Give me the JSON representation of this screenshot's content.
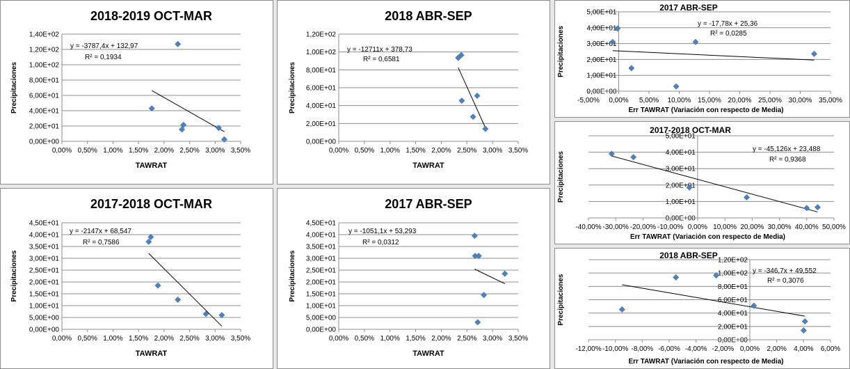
{
  "chart_data": [
    {
      "type": "scatter",
      "title": "2018-2019 OCT-MAR",
      "xlabel": "TAWRAT",
      "ylabel": "Precipitaciones",
      "xlim": [
        0,
        0.035
      ],
      "ylim": [
        0,
        140
      ],
      "x_ticks": [
        "0,00%",
        "0,50%",
        "1,00%",
        "1,50%",
        "2,00%",
        "2,50%",
        "3,00%",
        "3,50%"
      ],
      "y_ticks": [
        "0,00E+00",
        "2,00E+01",
        "4,00E+01",
        "6,00E+01",
        "8,00E+01",
        "1,00E+02",
        "1,20E+02",
        "1,40E+02"
      ],
      "points": [
        {
          "x": 0.0176,
          "y": 43
        },
        {
          "x": 0.0227,
          "y": 127
        },
        {
          "x": 0.0235,
          "y": 15.5
        },
        {
          "x": 0.0238,
          "y": 21.5
        },
        {
          "x": 0.0307,
          "y": 17.5
        },
        {
          "x": 0.0318,
          "y": 2.5
        }
      ],
      "trendline": {
        "slope": -3787.4,
        "intercept": 132.97
      },
      "equation": "y = -3787,4x + 132,97",
      "r2": "R² = 0,1934",
      "grid": true,
      "legend": "none",
      "marker_color": "#4f81bd"
    },
    {
      "type": "scatter",
      "title": "2018 ABR-SEP",
      "xlabel": "TAWRAT",
      "ylabel": "Precipitaciones",
      "xlim": [
        0,
        0.035
      ],
      "ylim": [
        0,
        120
      ],
      "x_ticks": [
        "0,00%",
        "0,50%",
        "1,00%",
        "1,50%",
        "2,00%",
        "2,50%",
        "3,00%",
        "3,50%"
      ],
      "y_ticks": [
        "0,00E+00",
        "2,00E+01",
        "4,00E+01",
        "6,00E+01",
        "8,00E+01",
        "1,00E+02",
        "1,20E+02"
      ],
      "points": [
        {
          "x": 0.0233,
          "y": 93.5
        },
        {
          "x": 0.0239,
          "y": 96.5
        },
        {
          "x": 0.024,
          "y": 45.5
        },
        {
          "x": 0.0262,
          "y": 27.5
        },
        {
          "x": 0.027,
          "y": 51
        },
        {
          "x": 0.0286,
          "y": 14
        }
      ],
      "trendline": {
        "slope": -12711,
        "intercept": 378.73
      },
      "equation": "y = -12711x + 378,73",
      "r2": "R² = 0,6581",
      "grid": true,
      "legend": "none",
      "marker_color": "#4f81bd"
    },
    {
      "type": "scatter",
      "title": "2017-2018 OCT-MAR",
      "xlabel": "TAWRAT",
      "ylabel": "Precipitaciones",
      "xlim": [
        0,
        0.035
      ],
      "ylim": [
        0,
        45
      ],
      "x_ticks": [
        "0,00%",
        "0,50%",
        "1,00%",
        "1,50%",
        "2,00%",
        "2,50%",
        "3,00%",
        "3,50%"
      ],
      "y_ticks": [
        "0,00E+00",
        "5,00E+00",
        "1,00E+01",
        "1,50E+01",
        "2,00E+01",
        "2,50E+01",
        "3,00E+01",
        "3,50E+01",
        "4,00E+01",
        "4,50E+01"
      ],
      "points": [
        {
          "x": 0.017,
          "y": 37
        },
        {
          "x": 0.0174,
          "y": 39
        },
        {
          "x": 0.0188,
          "y": 18.5
        },
        {
          "x": 0.0227,
          "y": 12.5
        },
        {
          "x": 0.0282,
          "y": 6.5
        },
        {
          "x": 0.0313,
          "y": 6
        }
      ],
      "trendline": {
        "slope": -2147,
        "intercept": 68.547
      },
      "equation": "y = -2147x + 68,547",
      "r2": "R² = 0,7586",
      "grid": true,
      "legend": "none",
      "marker_color": "#4f81bd"
    },
    {
      "type": "scatter",
      "title": "2017 ABR-SEP",
      "xlabel": "TAWRAT",
      "ylabel": "Precipitaciones",
      "xlim": [
        0,
        0.035
      ],
      "ylim": [
        0,
        45
      ],
      "x_ticks": [
        "0,00%",
        "0,50%",
        "1,00%",
        "1,50%",
        "2,00%",
        "2,50%",
        "3,00%",
        "3,50%"
      ],
      "y_ticks": [
        "0,00E+00",
        "5,00E+00",
        "1,00E+01",
        "1,50E+01",
        "2,00E+01",
        "2,50E+01",
        "3,00E+01",
        "3,50E+01",
        "4,00E+01",
        "4,50E+01"
      ],
      "points": [
        {
          "x": 0.0265,
          "y": 39.5
        },
        {
          "x": 0.0266,
          "y": 31
        },
        {
          "x": 0.0273,
          "y": 31
        },
        {
          "x": 0.0271,
          "y": 3
        },
        {
          "x": 0.0283,
          "y": 14.5
        },
        {
          "x": 0.0324,
          "y": 23.5
        }
      ],
      "trendline": {
        "slope": -1051.1,
        "intercept": 53.293
      },
      "equation": "y = -1051,1x + 53,293",
      "r2": "R² = 0,0312",
      "grid": true,
      "legend": "none",
      "marker_color": "#4f81bd"
    },
    {
      "type": "scatter",
      "title": "2017 ABR-SEP",
      "xlabel": "Err TAWRAT (Variación con respecto de Media)",
      "ylabel": "Precipitaciones",
      "xlim": [
        -0.05,
        0.35
      ],
      "ylim": [
        0,
        50
      ],
      "x_ticks": [
        "-5,00%",
        "0,00%",
        "5,00%",
        "10,00%",
        "15,00%",
        "20,00%",
        "25,00%",
        "30,00%",
        "35,00%"
      ],
      "y_ticks": [
        "0,00E+00",
        "1,00E+01",
        "2,00E+01",
        "3,00E+01",
        "4,00E+01",
        "5,00E+01"
      ],
      "points": [
        {
          "x": -0.01,
          "y": 31
        },
        {
          "x": -0.002,
          "y": 39.5
        },
        {
          "x": 0.021,
          "y": 14.5
        },
        {
          "x": 0.095,
          "y": 3
        },
        {
          "x": 0.127,
          "y": 31
        },
        {
          "x": 0.323,
          "y": 23.5
        }
      ],
      "trendline": {
        "slope": -17.78,
        "intercept": 25.36
      },
      "equation": "y = -17,78x + 25,36",
      "r2": "R² = 0,0285",
      "grid": true,
      "legend": "none",
      "marker_color": "#4f81bd"
    },
    {
      "type": "scatter",
      "title": "2017-2018  OCT-MAR",
      "xlabel": "Err TAWRAT (Variación con respecto de Media)",
      "ylabel": "Precipitaciones",
      "xlim": [
        -0.4,
        0.5
      ],
      "ylim": [
        0,
        50
      ],
      "x_ticks": [
        "-40,00%",
        "-30,00%",
        "-20,00%",
        "-10,00%",
        "0,00%",
        "10,00%",
        "20,00%",
        "30,00%",
        "40,00%",
        "50,00%"
      ],
      "y_ticks": [
        "0,00E+00",
        "1,00E+01",
        "2,00E+01",
        "3,00E+01",
        "4,00E+01",
        "5,00E+01"
      ],
      "points": [
        {
          "x": -0.315,
          "y": 39
        },
        {
          "x": -0.235,
          "y": 37
        },
        {
          "x": -0.03,
          "y": 18.5
        },
        {
          "x": 0.18,
          "y": 12.5
        },
        {
          "x": 0.4,
          "y": 6
        },
        {
          "x": 0.44,
          "y": 6.5
        }
      ],
      "trendline": {
        "slope": -45.126,
        "intercept": 23.488
      },
      "equation": "y = -45,126x + 23,488",
      "r2": "R² = 0,9368",
      "grid": true,
      "legend": "none",
      "marker_color": "#4f81bd"
    },
    {
      "type": "scatter",
      "title": "2018 ABR-SEP",
      "xlabel": "Err TAWRAT (Variación con respecto de Media)",
      "ylabel": "Precipitaciones",
      "xlim": [
        -0.12,
        0.06
      ],
      "ylim": [
        0,
        120
      ],
      "x_ticks": [
        "-12,00%",
        "-10,00%",
        "-8,00%",
        "-6,00%",
        "-4,00%",
        "-2,00%",
        "0,00%",
        "2,00%",
        "4,00%",
        "6,00%"
      ],
      "y_ticks": [
        "0,00E+00",
        "2,00E+01",
        "4,00E+01",
        "6,00E+01",
        "8,00E+01",
        "1,00E+02",
        "1,20E+02"
      ],
      "points": [
        {
          "x": -0.095,
          "y": 45.5
        },
        {
          "x": -0.055,
          "y": 93.5
        },
        {
          "x": -0.025,
          "y": 96.5
        },
        {
          "x": 0.003,
          "y": 51
        },
        {
          "x": 0.04,
          "y": 14
        },
        {
          "x": 0.041,
          "y": 27.5
        }
      ],
      "trendline": {
        "slope": -346.7,
        "intercept": 49.552
      },
      "equation": "y = -346,7x + 49,552",
      "r2": "R² = 0,3076",
      "grid": true,
      "legend": "none",
      "marker_color": "#4f81bd"
    }
  ]
}
